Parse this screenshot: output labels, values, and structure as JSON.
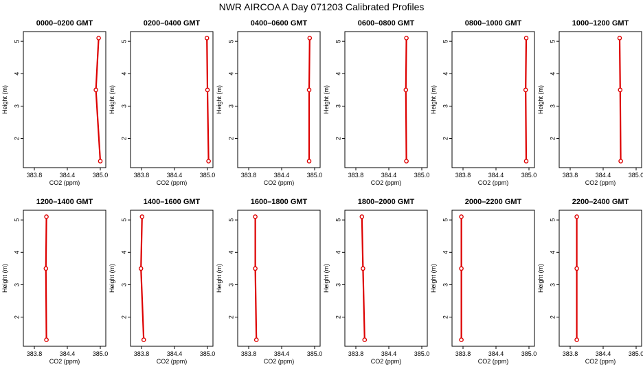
{
  "title": "NWR AIRCOA A  Day 071203  Calibrated Profiles",
  "colors": {
    "profile": "#dd0000",
    "axis": "#000000",
    "background": "#ffffff"
  },
  "chart_data": {
    "type": "line",
    "panel_count": 12,
    "xlabel": "CO2 (ppm)",
    "ylabel": "Height (m)",
    "xlim": [
      383.6,
      385.1
    ],
    "ylim": [
      1.1,
      5.3
    ],
    "xticks": [
      "383.8",
      "384.4",
      "385.0"
    ],
    "yticks": [
      "2",
      "3",
      "4",
      "5"
    ],
    "grid": false,
    "legend": "none",
    "heights": [
      1.3,
      3.5,
      5.1
    ],
    "panels": [
      {
        "title": "0000–0200 GMT",
        "co2": [
          385.0,
          384.92,
          384.97
        ]
      },
      {
        "title": "0200–0400 GMT",
        "co2": [
          385.02,
          385.0,
          384.99
        ]
      },
      {
        "title": "0400–0600 GMT",
        "co2": [
          384.9,
          384.9,
          384.91
        ]
      },
      {
        "title": "0600–0800 GMT",
        "co2": [
          384.72,
          384.71,
          384.72
        ]
      },
      {
        "title": "0800–1000 GMT",
        "co2": [
          384.95,
          384.94,
          384.95
        ]
      },
      {
        "title": "1000–1200 GMT",
        "co2": [
          384.72,
          384.71,
          384.7
        ]
      },
      {
        "title": "1200–1400 GMT",
        "co2": [
          384.02,
          384.01,
          384.02
        ]
      },
      {
        "title": "1400–1600 GMT",
        "co2": [
          383.84,
          383.79,
          383.81
        ]
      },
      {
        "title": "1600–1800 GMT",
        "co2": [
          383.94,
          383.92,
          383.92
        ]
      },
      {
        "title": "1800–2000 GMT",
        "co2": [
          383.96,
          383.93,
          383.91
        ]
      },
      {
        "title": "2000–2200 GMT",
        "co2": [
          383.77,
          383.77,
          383.77
        ]
      },
      {
        "title": "2200–2400 GMT",
        "co2": [
          383.92,
          383.92,
          383.92
        ]
      }
    ]
  }
}
